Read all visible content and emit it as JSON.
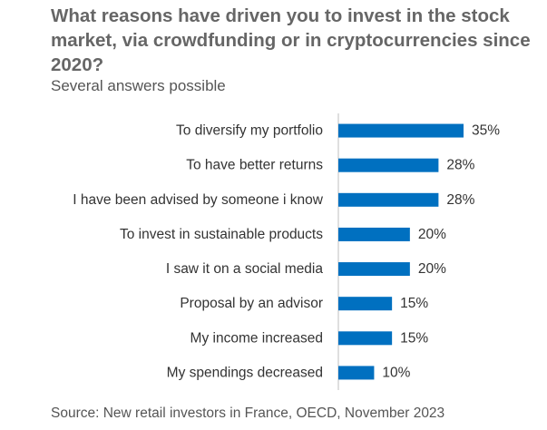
{
  "chart_data": {
    "type": "bar",
    "orientation": "horizontal",
    "title": "What reasons have driven you to invest in the stock market, via crowdfunding or in cryptocurrencies since 2020?",
    "subtitle": "Several answers possible",
    "source": "Source: New retail investors in France, OECD, November 2023",
    "categories": [
      "To diversify my portfolio",
      "To have better returns",
      "I have been advised by someone i know",
      "To invest in sustainable products",
      "I saw it on a social media",
      "Proposal by an advisor",
      "My income increased",
      "My spendings decreased"
    ],
    "values": [
      35,
      28,
      28,
      20,
      20,
      15,
      15,
      10
    ],
    "value_labels": [
      "35%",
      "28%",
      "28%",
      "20%",
      "20%",
      "15%",
      "15%",
      "10%"
    ],
    "unit": "%",
    "xlim": [
      0,
      40
    ],
    "grid": false,
    "bar_color": "#0070C0",
    "axis_color": "#BFBFBF"
  }
}
